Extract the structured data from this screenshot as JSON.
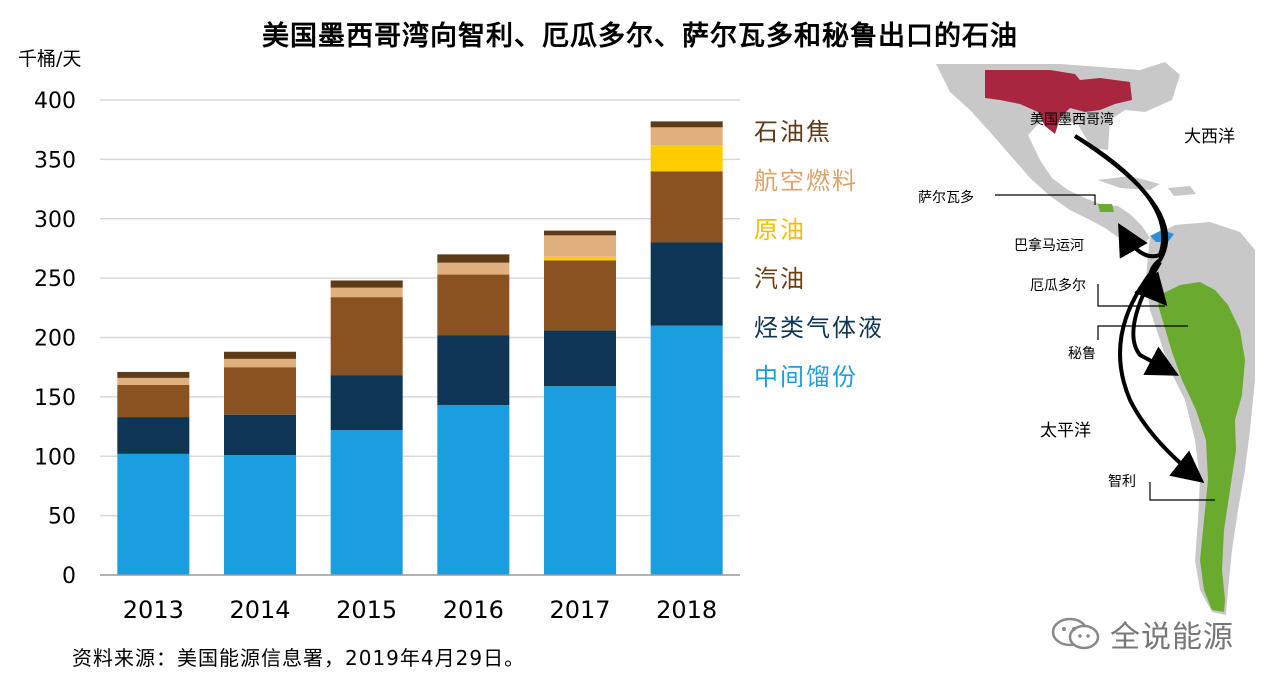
{
  "title": "美国墨西哥湾向智利、厄瓜多尔、萨尔瓦多和秘鲁出口的石油",
  "unit_label": "千桶/天",
  "source": "资料来源：美国能源信息署，2019年4月29日。",
  "watermark": "全说能源",
  "chart_data": {
    "type": "bar",
    "stacked": true,
    "categories": [
      "2013",
      "2014",
      "2015",
      "2016",
      "2017",
      "2018"
    ],
    "ylim": [
      0,
      400
    ],
    "yticks": [
      0,
      50,
      100,
      150,
      200,
      250,
      300,
      350,
      400
    ],
    "grid": true,
    "legend_position": "right",
    "series": [
      {
        "name": "中间馏份",
        "color": "#1b9ee0",
        "values": [
          102,
          101,
          122,
          143,
          159,
          210
        ]
      },
      {
        "name": "烃类气体液",
        "color": "#0d3554",
        "values": [
          31,
          34,
          46,
          59,
          47,
          70
        ]
      },
      {
        "name": "汽油",
        "color": "#8a5220",
        "values": [
          27,
          40,
          66,
          51,
          59,
          60
        ]
      },
      {
        "name": "原油",
        "color": "#ffcc00",
        "values": [
          0,
          0,
          0,
          0,
          3,
          22
        ]
      },
      {
        "name": "航空燃料",
        "color": "#e0b07e",
        "values": [
          6,
          7,
          8,
          10,
          18,
          15
        ]
      },
      {
        "name": "石油焦",
        "color": "#5e3a17",
        "values": [
          5,
          6,
          6,
          7,
          4,
          5
        ]
      }
    ],
    "legend_order": [
      "石油焦",
      "航空燃料",
      "原油",
      "汽油",
      "烃类气体液",
      "中间馏份"
    ]
  },
  "map": {
    "labels": {
      "us_gulf": "美国墨西哥湾",
      "atlantic": "大西洋",
      "el_salvador": "萨尔瓦多",
      "panama_canal": "巴拿马运河",
      "ecuador": "厄瓜多尔",
      "peru": "秘鲁",
      "pacific": "太平洋",
      "chile": "智利"
    },
    "colors": {
      "land": "#c8c8c8",
      "us_highlight": "#a8263f",
      "destination": "#6aaa2e",
      "canal": "#2b8fd8",
      "route": "#000000"
    }
  }
}
